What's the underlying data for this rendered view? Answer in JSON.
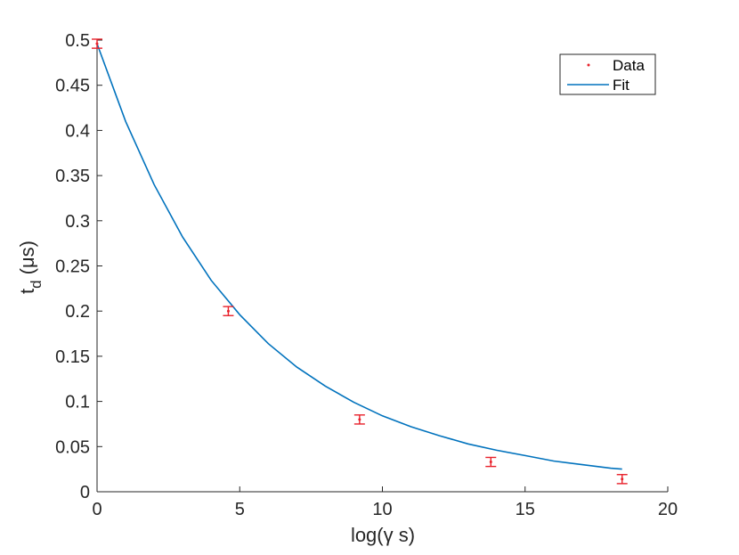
{
  "chart_data": {
    "type": "scatter",
    "xlabel": "log(γ s)",
    "ylabel_main": "t",
    "ylabel_sub": "d",
    "ylabel_unit": "(μs)",
    "xlim": [
      0,
      20
    ],
    "ylim": [
      0,
      0.5
    ],
    "x_ticks": [
      0,
      5,
      10,
      15,
      20
    ],
    "x_tick_labels": [
      "0",
      "5",
      "10",
      "15",
      "20"
    ],
    "y_ticks": [
      0,
      0.05,
      0.1,
      0.15,
      0.2,
      0.25,
      0.3,
      0.35,
      0.4,
      0.45,
      0.5
    ],
    "y_tick_labels": [
      "0",
      "0.05",
      "0.1",
      "0.15",
      "0.2",
      "0.25",
      "0.3",
      "0.35",
      "0.4",
      "0.45",
      "0.5"
    ],
    "grid": false,
    "legend_position": "top-right",
    "series": [
      {
        "name": "Data",
        "kind": "errorbar",
        "color": "#e8202a",
        "x": [
          0.0,
          4.6,
          9.2,
          13.8,
          18.4
        ],
        "y": [
          0.496,
          0.2,
          0.08,
          0.033,
          0.014
        ],
        "err": [
          0.005,
          0.005,
          0.005,
          0.005,
          0.005
        ]
      },
      {
        "name": "Fit",
        "kind": "line",
        "color": "#0072bd",
        "x": [
          0,
          1,
          2,
          3,
          4,
          5,
          6,
          7,
          8,
          9,
          10,
          11,
          12,
          13,
          14,
          15,
          16,
          17,
          18,
          18.4
        ],
        "y": [
          0.496,
          0.41,
          0.34,
          0.282,
          0.234,
          0.196,
          0.164,
          0.138,
          0.117,
          0.099,
          0.084,
          0.072,
          0.062,
          0.053,
          0.046,
          0.04,
          0.034,
          0.03,
          0.026,
          0.025
        ]
      }
    ]
  }
}
